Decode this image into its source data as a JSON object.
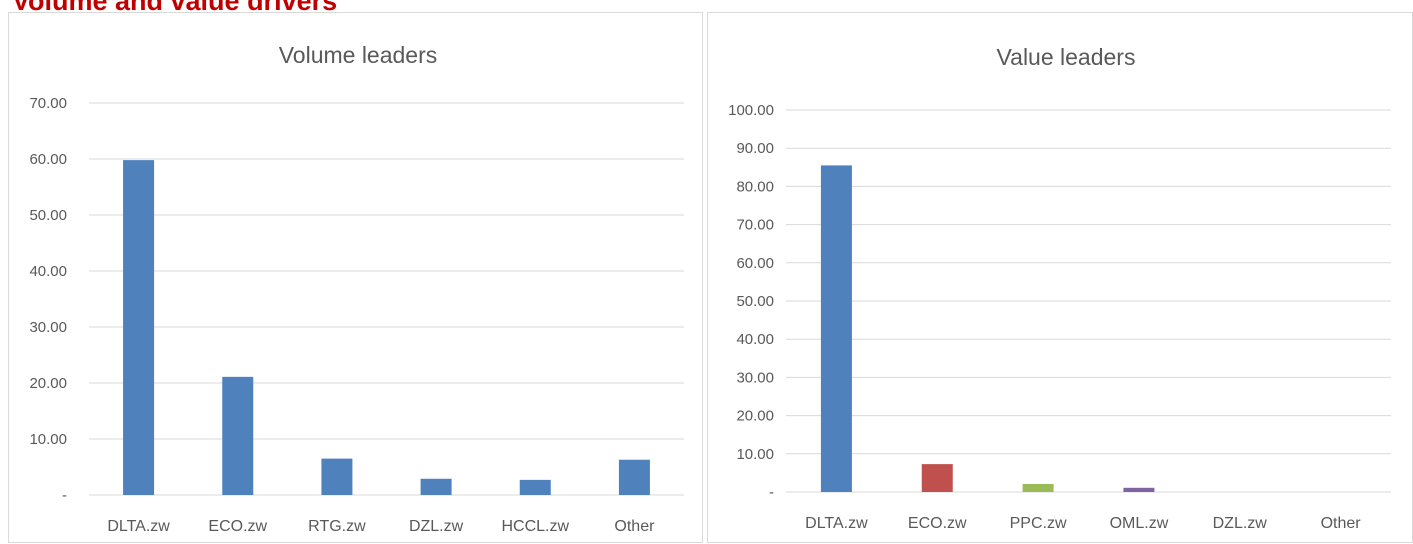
{
  "page": {
    "title": "Volume and value drivers"
  },
  "chart_data": [
    {
      "type": "bar",
      "title": "Volume leaders",
      "categories": [
        "DLTA.zw",
        "ECO.zw",
        "RTG.zw",
        "DZL.zw",
        "HCCL.zw",
        "Other"
      ],
      "values": [
        59.8,
        21.1,
        6.5,
        2.9,
        2.7,
        6.3
      ],
      "colors": [
        "#4f81bd",
        "#4f81bd",
        "#4f81bd",
        "#4f81bd",
        "#4f81bd",
        "#4f81bd"
      ],
      "ylim": [
        0,
        70
      ],
      "yticks": [
        "-",
        "10.00",
        "20.00",
        "30.00",
        "40.00",
        "50.00",
        "60.00",
        "70.00"
      ],
      "grid": true,
      "legend": "none"
    },
    {
      "type": "bar",
      "title": "Value leaders",
      "categories": [
        "DLTA.zw",
        "ECO.zw",
        "PPC.zw",
        "OML.zw",
        "DZL.zw",
        "Other"
      ],
      "values": [
        85.5,
        7.3,
        2.1,
        1.1,
        0,
        0
      ],
      "colors": [
        "#4f81bd",
        "#c0504d",
        "#9bbb59",
        "#8064a2",
        "#4bacc6",
        "#f79646"
      ],
      "ylim": [
        0,
        100
      ],
      "yticks": [
        "-",
        "10.00",
        "20.00",
        "30.00",
        "40.00",
        "50.00",
        "60.00",
        "70.00",
        "80.00",
        "90.00",
        "100.00"
      ],
      "grid": true,
      "legend": "none"
    }
  ]
}
